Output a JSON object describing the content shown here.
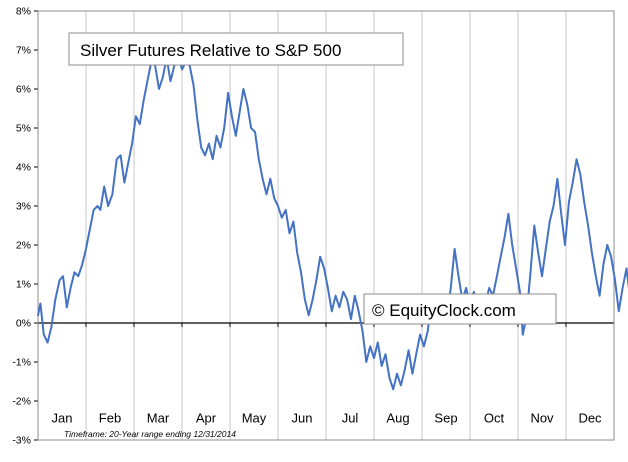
{
  "chart_data": {
    "type": "line",
    "title": "Silver Futures Relative to S&P 500",
    "watermark": "© EquityClock.com",
    "footnote": "Timeframe: 20-Year range ending 12/31/2014",
    "xlabel": "",
    "ylabel": "",
    "ylim": [
      -3,
      8
    ],
    "yticks": [
      "8%",
      "7%",
      "6%",
      "5%",
      "4%",
      "3%",
      "2%",
      "1%",
      "0%",
      "-1%",
      "-2%",
      "-3%"
    ],
    "ytick_values": [
      8,
      7,
      6,
      5,
      4,
      3,
      2,
      1,
      0,
      -1,
      -2,
      -3
    ],
    "months": [
      "Jan",
      "Feb",
      "Mar",
      "Apr",
      "May",
      "Jun",
      "Jul",
      "Aug",
      "Sep",
      "Oct",
      "Nov",
      "Dec"
    ],
    "grid": true,
    "line_color": "#4472c4",
    "series": [
      {
        "points": [
          [
            0.0,
            0.2
          ],
          [
            0.05,
            0.5
          ],
          [
            0.12,
            -0.3
          ],
          [
            0.2,
            -0.5
          ],
          [
            0.28,
            -0.1
          ],
          [
            0.36,
            0.6
          ],
          [
            0.45,
            1.1
          ],
          [
            0.52,
            1.2
          ],
          [
            0.6,
            0.4
          ],
          [
            0.68,
            0.9
          ],
          [
            0.76,
            1.3
          ],
          [
            0.84,
            1.2
          ],
          [
            0.92,
            1.5
          ],
          [
            1.0,
            1.9
          ],
          [
            1.08,
            2.4
          ],
          [
            1.16,
            2.9
          ],
          [
            1.24,
            3.0
          ],
          [
            1.3,
            2.9
          ],
          [
            1.38,
            3.5
          ],
          [
            1.46,
            3.0
          ],
          [
            1.55,
            3.3
          ],
          [
            1.64,
            4.2
          ],
          [
            1.72,
            4.3
          ],
          [
            1.8,
            3.6
          ],
          [
            1.88,
            4.1
          ],
          [
            1.96,
            4.6
          ],
          [
            2.04,
            5.3
          ],
          [
            2.12,
            5.1
          ],
          [
            2.2,
            5.7
          ],
          [
            2.28,
            6.2
          ],
          [
            2.36,
            6.7
          ],
          [
            2.44,
            6.6
          ],
          [
            2.52,
            6.0
          ],
          [
            2.6,
            6.3
          ],
          [
            2.68,
            6.8
          ],
          [
            2.76,
            6.2
          ],
          [
            2.84,
            6.6
          ],
          [
            2.92,
            6.9
          ],
          [
            3.0,
            6.5
          ],
          [
            3.08,
            6.7
          ],
          [
            3.16,
            6.6
          ],
          [
            3.24,
            6.1
          ],
          [
            3.32,
            5.2
          ],
          [
            3.4,
            4.5
          ],
          [
            3.48,
            4.3
          ],
          [
            3.56,
            4.6
          ],
          [
            3.64,
            4.2
          ],
          [
            3.72,
            4.8
          ],
          [
            3.8,
            4.5
          ],
          [
            3.88,
            5.0
          ],
          [
            3.96,
            5.9
          ],
          [
            4.04,
            5.3
          ],
          [
            4.12,
            4.8
          ],
          [
            4.2,
            5.4
          ],
          [
            4.28,
            6.0
          ],
          [
            4.36,
            5.6
          ],
          [
            4.44,
            5.0
          ],
          [
            4.52,
            4.9
          ],
          [
            4.6,
            4.2
          ],
          [
            4.68,
            3.7
          ],
          [
            4.76,
            3.3
          ],
          [
            4.84,
            3.7
          ],
          [
            4.92,
            3.2
          ],
          [
            5.0,
            3.0
          ],
          [
            5.08,
            2.7
          ],
          [
            5.16,
            2.9
          ],
          [
            5.24,
            2.3
          ],
          [
            5.32,
            2.6
          ],
          [
            5.4,
            1.8
          ],
          [
            5.48,
            1.3
          ],
          [
            5.56,
            0.6
          ],
          [
            5.64,
            0.2
          ],
          [
            5.72,
            0.6
          ],
          [
            5.8,
            1.1
          ],
          [
            5.88,
            1.7
          ],
          [
            5.96,
            1.4
          ],
          [
            6.04,
            0.9
          ],
          [
            6.12,
            0.3
          ],
          [
            6.2,
            0.7
          ],
          [
            6.28,
            0.4
          ],
          [
            6.36,
            0.8
          ],
          [
            6.44,
            0.6
          ],
          [
            6.52,
            0.1
          ],
          [
            6.6,
            0.7
          ],
          [
            6.68,
            0.3
          ],
          [
            6.76,
            -0.2
          ],
          [
            6.84,
            -1.0
          ],
          [
            6.92,
            -0.6
          ],
          [
            7.0,
            -0.9
          ],
          [
            7.08,
            -0.5
          ],
          [
            7.16,
            -1.1
          ],
          [
            7.24,
            -0.8
          ],
          [
            7.32,
            -1.4
          ],
          [
            7.4,
            -1.7
          ],
          [
            7.48,
            -1.3
          ],
          [
            7.56,
            -1.6
          ],
          [
            7.64,
            -1.2
          ],
          [
            7.72,
            -0.7
          ],
          [
            7.8,
            -1.3
          ],
          [
            7.88,
            -0.8
          ],
          [
            7.96,
            -0.3
          ],
          [
            8.04,
            -0.6
          ],
          [
            8.12,
            -0.2
          ],
          [
            8.2,
            0.6
          ],
          [
            8.28,
            0.1
          ],
          [
            8.36,
            0.2
          ],
          [
            8.44,
            0.5
          ],
          [
            8.52,
            0.2
          ],
          [
            8.6,
            0.9
          ],
          [
            8.68,
            1.9
          ],
          [
            8.76,
            1.2
          ],
          [
            8.84,
            0.6
          ],
          [
            8.92,
            0.9
          ],
          [
            9.0,
            0.4
          ],
          [
            9.08,
            0.8
          ],
          [
            9.16,
            0.3
          ],
          [
            9.24,
            0.7
          ],
          [
            9.32,
            0.5
          ],
          [
            9.4,
            0.9
          ],
          [
            9.48,
            0.7
          ],
          [
            9.56,
            1.2
          ],
          [
            9.64,
            1.7
          ],
          [
            9.72,
            2.2
          ],
          [
            9.8,
            2.8
          ],
          [
            9.88,
            2.0
          ],
          [
            9.96,
            1.4
          ],
          [
            10.04,
            0.8
          ],
          [
            10.1,
            -0.3
          ],
          [
            10.18,
            0.2
          ],
          [
            10.26,
            1.3
          ],
          [
            10.34,
            2.5
          ],
          [
            10.42,
            1.8
          ],
          [
            10.5,
            1.2
          ],
          [
            10.58,
            1.9
          ],
          [
            10.66,
            2.6
          ],
          [
            10.74,
            3.0
          ],
          [
            10.82,
            3.7
          ],
          [
            10.9,
            2.8
          ],
          [
            10.98,
            2.0
          ],
          [
            11.06,
            3.1
          ],
          [
            11.14,
            3.6
          ],
          [
            11.22,
            4.2
          ],
          [
            11.3,
            3.8
          ],
          [
            11.38,
            3.1
          ],
          [
            11.46,
            2.5
          ],
          [
            11.54,
            1.8
          ],
          [
            11.62,
            1.2
          ],
          [
            11.7,
            0.7
          ],
          [
            11.78,
            1.5
          ],
          [
            11.86,
            2.0
          ],
          [
            11.94,
            1.7
          ],
          [
            12.02,
            1.1
          ],
          [
            12.1,
            0.3
          ],
          [
            12.18,
            0.9
          ],
          [
            12.26,
            1.4
          ],
          [
            12.34,
            0.6
          ],
          [
            12.42,
            0.2
          ],
          [
            12.5,
            -0.1
          ],
          [
            12.58,
            1.2
          ],
          [
            12.66,
            1.7
          ],
          [
            12.74,
            1.1
          ],
          [
            12.82,
            1.8
          ],
          [
            12.9,
            1.3
          ],
          [
            12.98,
            1.6
          ],
          [
            13.06,
            1.9
          ],
          [
            13.14,
            2.0
          ],
          [
            13.22,
            1.4
          ],
          [
            13.3,
            1.8
          ],
          [
            13.38,
            1.1
          ],
          [
            13.46,
            1.6
          ],
          [
            13.54,
            1.9
          ],
          [
            13.62,
            1.3
          ],
          [
            13.7,
            1.7
          ],
          [
            13.78,
            1.5
          ],
          [
            13.86,
            0.9
          ],
          [
            13.94,
            1.3
          ],
          [
            14.02,
            0.8
          ],
          [
            14.1,
            0.2
          ],
          [
            14.18,
            -0.1
          ],
          [
            14.26,
            0.5
          ],
          [
            14.34,
            0.9
          ],
          [
            14.42,
            1.1
          ],
          [
            14.5,
            0.8
          ],
          [
            14.58,
            1.2
          ],
          [
            14.6,
            1.3
          ]
        ]
      }
    ]
  }
}
